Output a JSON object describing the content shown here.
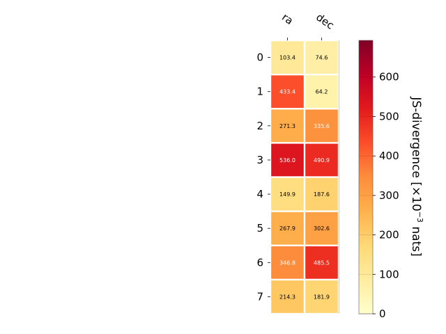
{
  "chart_data": {
    "type": "heatmap",
    "title": "",
    "x_categories": [
      "ra",
      "dec"
    ],
    "y_categories": [
      "0",
      "1",
      "2",
      "3",
      "4",
      "5",
      "6",
      "7"
    ],
    "values": [
      [
        103.4,
        74.6
      ],
      [
        433.4,
        64.2
      ],
      [
        271.3,
        335.6
      ],
      [
        536.0,
        490.9
      ],
      [
        149.9,
        187.6
      ],
      [
        267.9,
        302.6
      ],
      [
        346.8,
        485.5
      ],
      [
        214.3,
        181.9
      ]
    ],
    "value_labels": [
      [
        "103.4",
        "74.6"
      ],
      [
        "433.4",
        "64.2"
      ],
      [
        "271.3",
        "335.6"
      ],
      [
        "536.0",
        "490.9"
      ],
      [
        "149.9",
        "187.6"
      ],
      [
        "267.9",
        "302.6"
      ],
      [
        "346.8",
        "485.5"
      ],
      [
        "214.3",
        "181.9"
      ]
    ],
    "colorbar": {
      "label": "JS-divergence [×10⁻³ nats]",
      "range": [
        0,
        693
      ],
      "ticks": [
        0,
        100,
        200,
        300,
        400,
        500,
        600
      ],
      "colormap": "YlOrRd",
      "colors": [
        "#ffffcc",
        "#ffeda0",
        "#fed976",
        "#feb24c",
        "#fd8d3c",
        "#fc4e2a",
        "#e31a1c",
        "#bd0026",
        "#800026"
      ]
    },
    "grid": false
  }
}
